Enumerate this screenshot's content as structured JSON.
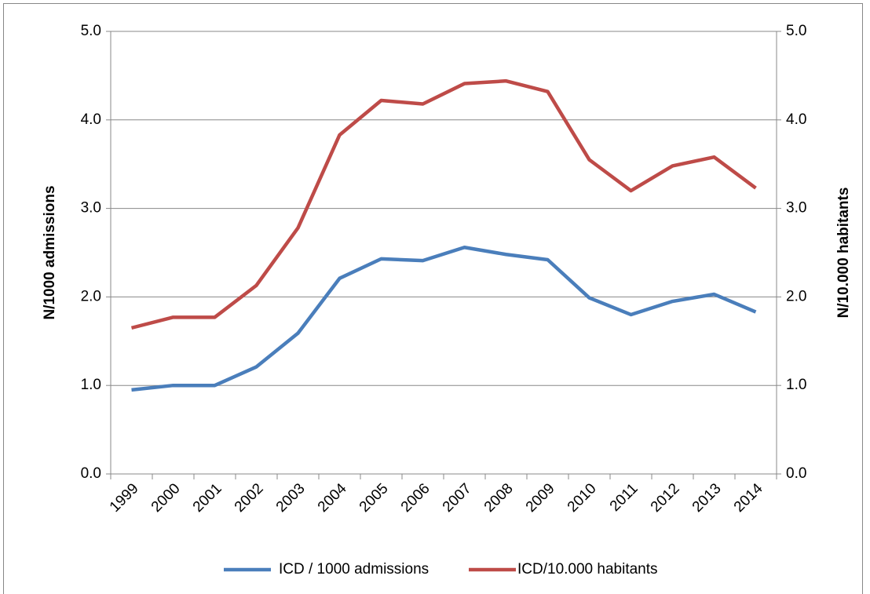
{
  "chart_data": {
    "type": "line",
    "categories": [
      "1999",
      "2000",
      "2001",
      "2002",
      "2003",
      "2004",
      "2005",
      "2006",
      "2007",
      "2008",
      "2009",
      "2010",
      "2011",
      "2012",
      "2013",
      "2014"
    ],
    "y_label": "N/1000 admissions",
    "y2_label": "N/10.000 habitants",
    "ylim": [
      0,
      5
    ],
    "yticks": [
      {
        "value": 0,
        "label": "0.0"
      },
      {
        "value": 1,
        "label": "1.0"
      },
      {
        "value": 2,
        "label": "2.0"
      },
      {
        "value": 3,
        "label": "3.0"
      },
      {
        "value": 4,
        "label": "4.0"
      },
      {
        "value": 5,
        "label": "5.0"
      }
    ],
    "y2lim": [
      0,
      5
    ],
    "y2ticks": [
      {
        "value": 0,
        "label": "0.0"
      },
      {
        "value": 1,
        "label": "1.0"
      },
      {
        "value": 2,
        "label": "2.0"
      },
      {
        "value": 3,
        "label": "3.0"
      },
      {
        "value": 4,
        "label": "4.0"
      },
      {
        "value": 5,
        "label": "5.0"
      }
    ],
    "grid": true,
    "legend": "bottom",
    "series": [
      {
        "name": "ICD / 1000 admissions",
        "color": "#4a7ebb",
        "values": [
          0.95,
          1.0,
          1.0,
          1.21,
          1.59,
          2.21,
          2.43,
          2.41,
          2.56,
          2.48,
          2.42,
          1.99,
          1.8,
          1.95,
          2.03,
          1.83
        ]
      },
      {
        "name": "ICD/10.000 habitants",
        "color": "#be4b48",
        "axis": "y2",
        "values": [
          1.65,
          1.77,
          1.77,
          2.13,
          2.78,
          3.83,
          4.22,
          4.18,
          4.41,
          4.44,
          4.32,
          3.55,
          3.2,
          3.48,
          3.58,
          3.23
        ]
      }
    ]
  }
}
